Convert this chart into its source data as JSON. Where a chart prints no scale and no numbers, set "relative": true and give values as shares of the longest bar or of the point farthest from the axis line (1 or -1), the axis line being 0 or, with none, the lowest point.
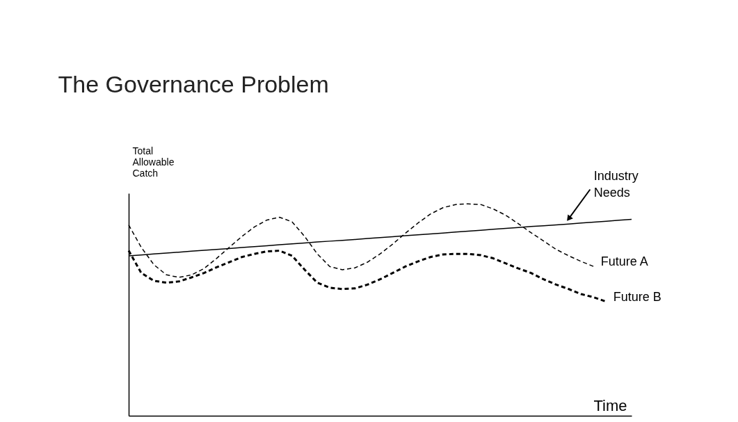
{
  "chart_data": {
    "type": "line",
    "title": "The Governance Problem",
    "ylabel": "Total Allowable Catch",
    "xlabel": "Time",
    "relative": true,
    "marker": "none",
    "categories": [
      null,
      null,
      null,
      null,
      null,
      null,
      null,
      null,
      null,
      null,
      null,
      null,
      null,
      null,
      null,
      null,
      null,
      null,
      null,
      null,
      null,
      null,
      null,
      null,
      null,
      null,
      null,
      null,
      null,
      null,
      null,
      null,
      null,
      null,
      null,
      null,
      null,
      null,
      null,
      null,
      null
    ],
    "series": [
      {
        "name": "Industry Needs",
        "color": "#000000",
        "line_style": "solid",
        "values": [
          0.755,
          0.759,
          0.764,
          0.768,
          0.772,
          0.777,
          0.781,
          0.785,
          0.789,
          0.794,
          0.798,
          0.802,
          0.807,
          0.811,
          0.815,
          0.82,
          0.824,
          0.828,
          0.832,
          0.837,
          0.841,
          0.845,
          0.85,
          0.854,
          0.858,
          0.862,
          0.867,
          0.871,
          0.875,
          0.88,
          0.884,
          0.888,
          0.893,
          0.897,
          0.901,
          0.905,
          0.91,
          0.914,
          0.918,
          0.923,
          0.927
        ]
      },
      {
        "name": "Future A",
        "color": "#000000",
        "line_style": "dashed",
        "values": [
          0.9,
          0.795,
          0.713,
          0.665,
          0.653,
          0.665,
          0.695,
          0.743,
          0.795,
          0.846,
          0.891,
          0.924,
          0.937,
          0.915,
          0.846,
          0.764,
          0.704,
          0.689,
          0.698,
          0.725,
          0.764,
          0.81,
          0.861,
          0.909,
          0.952,
          0.982,
          0.997,
          1.0,
          0.997,
          0.976,
          0.946,
          0.906,
          0.864,
          0.825,
          0.785,
          0.755,
          0.728,
          0.704,
          null,
          null,
          null
        ]
      },
      {
        "name": "Future B",
        "color": "#000000",
        "line_style": "dashed",
        "values": [
          0.779,
          0.674,
          0.637,
          0.628,
          0.634,
          0.653,
          0.674,
          0.701,
          0.725,
          0.749,
          0.764,
          0.776,
          0.779,
          0.755,
          0.689,
          0.628,
          0.604,
          0.598,
          0.601,
          0.619,
          0.644,
          0.674,
          0.704,
          0.728,
          0.749,
          0.761,
          0.764,
          0.764,
          0.758,
          0.743,
          0.719,
          0.695,
          0.674,
          0.644,
          0.619,
          0.598,
          0.574,
          0.559,
          0.538,
          null,
          null
        ]
      }
    ]
  }
}
